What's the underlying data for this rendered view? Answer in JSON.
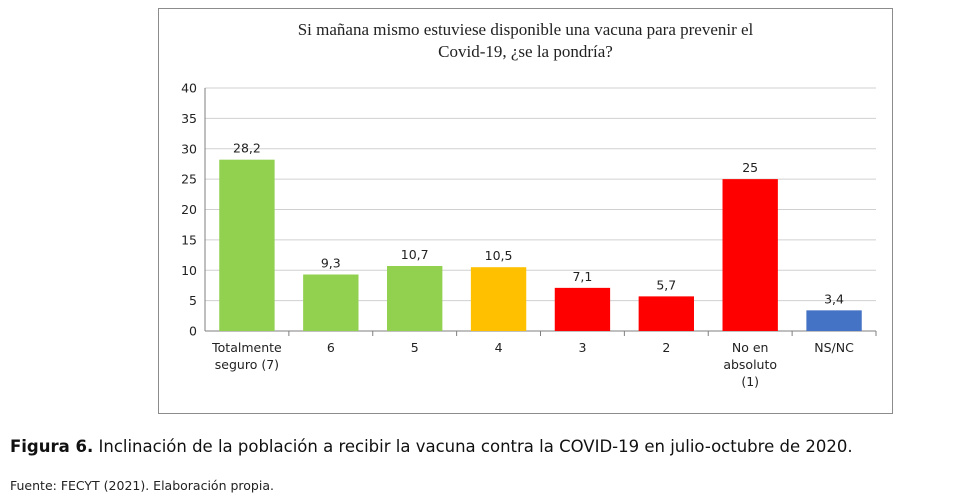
{
  "chart_data": {
    "type": "bar",
    "title_lines": [
      "Si mañana mismo estuviese disponible una vacuna para prevenir el",
      "Covid-19, ¿se la pondría?"
    ],
    "categories": [
      [
        "Totalmente",
        "seguro (7)"
      ],
      [
        "6"
      ],
      [
        "5"
      ],
      [
        "4"
      ],
      [
        "3"
      ],
      [
        "2"
      ],
      [
        "No en",
        "absoluto",
        "(1)"
      ],
      [
        "NS/NC"
      ]
    ],
    "values": [
      28.2,
      9.3,
      10.7,
      10.5,
      7.1,
      5.7,
      25,
      3.4
    ],
    "value_labels": [
      "28,2",
      "9,3",
      "10,7",
      "10,5",
      "7,1",
      "5,7",
      "25",
      "3,4"
    ],
    "colors": [
      "#92d050",
      "#92d050",
      "#92d050",
      "#ffc000",
      "#ff0000",
      "#ff0000",
      "#ff0000",
      "#4472c4"
    ],
    "ylim": [
      0,
      40
    ],
    "yticks": [
      0,
      5,
      10,
      15,
      20,
      25,
      30,
      35,
      40
    ],
    "grid": true,
    "xlabel": "",
    "ylabel": ""
  },
  "caption": {
    "label": "Figura 6.",
    "text": " Inclinación de la población a recibir la vacuna contra la COVID-19 en julio-octubre de 2020."
  },
  "source": "Fuente: FECYT (2021). Elaboración propia."
}
